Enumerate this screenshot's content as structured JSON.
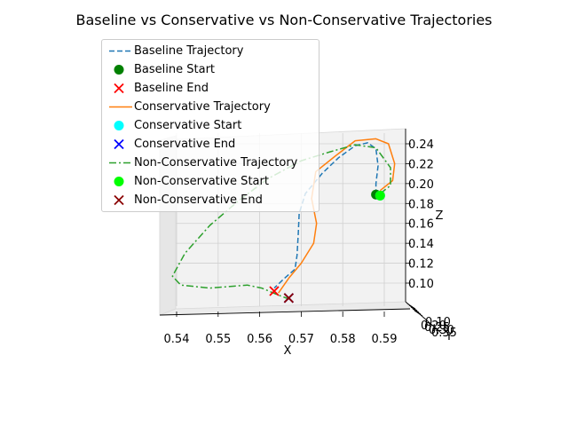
{
  "chart_data": {
    "type": "line3d",
    "title": "Baseline vs Conservative vs Non-Conservative Trajectories",
    "xlabel": "X",
    "ylabel": "Y",
    "zlabel": "Z",
    "x_ticks": [
      "0.54",
      "0.55",
      "0.56",
      "0.57",
      "0.58",
      "0.59"
    ],
    "y_ticks": [
      "0.10",
      "0.20",
      "0.25",
      "0.30",
      "0.35"
    ],
    "z_ticks": [
      "0.10",
      "0.12",
      "0.14",
      "0.16",
      "0.18",
      "0.20",
      "0.22",
      "0.24"
    ],
    "xlim": [
      0.536,
      0.598
    ],
    "zlim": [
      0.075,
      0.252
    ],
    "series": [
      {
        "name": "Baseline Trajectory",
        "color": "#1f77b4",
        "style": "dashed",
        "x": [
          0.588,
          0.588,
          0.5885,
          0.588,
          0.586,
          0.583,
          0.579,
          0.575,
          0.571,
          0.5695,
          0.5693,
          0.569,
          0.5685,
          0.566,
          0.5635
        ],
        "z": [
          0.189,
          0.2,
          0.218,
          0.235,
          0.241,
          0.238,
          0.226,
          0.21,
          0.19,
          0.17,
          0.15,
          0.128,
          0.114,
          0.105,
          0.095
        ]
      },
      {
        "name": "Conservative Trajectory",
        "color": "#ff7f0e",
        "style": "solid",
        "x": [
          0.589,
          0.592,
          0.5925,
          0.591,
          0.588,
          0.583,
          0.578,
          0.5735,
          0.5725,
          0.5737,
          0.573,
          0.57,
          0.567,
          0.5645
        ],
        "z": [
          0.193,
          0.203,
          0.22,
          0.24,
          0.245,
          0.243,
          0.227,
          0.212,
          0.185,
          0.16,
          0.14,
          0.12,
          0.105,
          0.09
        ]
      },
      {
        "name": "Non-Conservative Trajectory",
        "color": "#2ca02c",
        "style": "dashdot",
        "x": [
          0.589,
          0.5915,
          0.5915,
          0.588,
          0.583,
          0.577,
          0.57,
          0.562,
          0.555,
          0.548,
          0.542,
          0.539,
          0.541,
          0.548,
          0.554,
          0.557,
          0.5605,
          0.5645,
          0.567
        ],
        "z": [
          0.19,
          0.198,
          0.216,
          0.236,
          0.239,
          0.232,
          0.223,
          0.205,
          0.183,
          0.158,
          0.13,
          0.107,
          0.098,
          0.095,
          0.097,
          0.098,
          0.095,
          0.088,
          0.084
        ]
      }
    ],
    "markers": [
      {
        "name": "Baseline Start",
        "x": 0.588,
        "z": 0.189,
        "shape": "circle",
        "color": "#008000"
      },
      {
        "name": "Baseline End",
        "x": 0.5635,
        "z": 0.092,
        "shape": "x",
        "color": "#ff0000"
      },
      {
        "name": "Conservative Start",
        "x": 0.589,
        "z": 0.188,
        "shape": "circle",
        "color": "#00ffff"
      },
      {
        "name": "Conservative End",
        "x": 0.567,
        "z": 0.085,
        "shape": "x",
        "color": "#0000ff"
      },
      {
        "name": "Non-Conservative Start",
        "x": 0.589,
        "z": 0.188,
        "shape": "circle",
        "color": "#00ff00"
      },
      {
        "name": "Non-Conservative End",
        "x": 0.567,
        "z": 0.085,
        "shape": "x",
        "color": "#8b0000"
      }
    ],
    "legend": [
      {
        "label": "Baseline Trajectory",
        "kind": "line",
        "style": "dashed",
        "color": "#1f77b4"
      },
      {
        "label": "Baseline Start",
        "kind": "circle",
        "color": "#008000"
      },
      {
        "label": "Baseline End",
        "kind": "x",
        "color": "#ff0000"
      },
      {
        "label": "Conservative Trajectory",
        "kind": "line",
        "style": "solid",
        "color": "#ff7f0e"
      },
      {
        "label": "Conservative Start",
        "kind": "circle",
        "color": "#00ffff"
      },
      {
        "label": "Conservative End",
        "kind": "x",
        "color": "#0000ff"
      },
      {
        "label": "Non-Conservative Trajectory",
        "kind": "line",
        "style": "dashdot",
        "color": "#2ca02c"
      },
      {
        "label": "Non-Conservative Start",
        "kind": "circle",
        "color": "#00ff00"
      },
      {
        "label": "Non-Conservative End",
        "kind": "x",
        "color": "#8b0000"
      }
    ],
    "legend_position": "upper-left"
  }
}
